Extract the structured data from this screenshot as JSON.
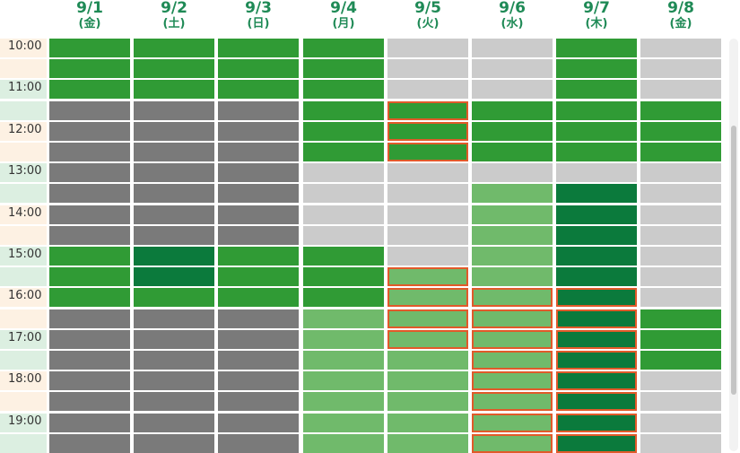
{
  "days": [
    {
      "date": "9/1",
      "weekday": "(金)"
    },
    {
      "date": "9/2",
      "weekday": "(土)"
    },
    {
      "date": "9/3",
      "weekday": "(日)"
    },
    {
      "date": "9/4",
      "weekday": "(月)"
    },
    {
      "date": "9/5",
      "weekday": "(火)"
    },
    {
      "date": "9/6",
      "weekday": "(水)"
    },
    {
      "date": "9/7",
      "weekday": "(木)"
    },
    {
      "date": "9/8",
      "weekday": "(金)"
    }
  ],
  "time_labels": [
    "10:00",
    "11:00",
    "12:00",
    "13:00",
    "14:00",
    "15:00",
    "16:00",
    "17:00",
    "18:00",
    "19:00"
  ],
  "colors": {
    "unavailable_dark": "#7a7a7a",
    "unavailable_light": "#cbcbcb",
    "available": "#309b35",
    "available_light": "#70ba6b",
    "available_dark": "#0b7a3c",
    "selected_border": "#e15a2a",
    "header_text": "#1f8a56"
  },
  "legend_codes": {
    "d": "unavailable_dark",
    "u": "unavailable_light",
    "g": "available",
    "l": "available_light",
    "k": "available_dark",
    "*": "selected"
  },
  "slots": [
    [
      "g",
      "g",
      "g",
      "g",
      "u",
      "u",
      "g",
      "u"
    ],
    [
      "g",
      "g",
      "g",
      "g",
      "u",
      "u",
      "g",
      "u"
    ],
    [
      "g",
      "g",
      "g",
      "g",
      "u",
      "u",
      "g",
      "u"
    ],
    [
      "d",
      "d",
      "d",
      "g",
      "g*",
      "g",
      "g",
      "g"
    ],
    [
      "d",
      "d",
      "d",
      "g",
      "g*",
      "g",
      "g",
      "g"
    ],
    [
      "d",
      "d",
      "d",
      "g",
      "g*",
      "g",
      "g",
      "g"
    ],
    [
      "d",
      "d",
      "d",
      "u",
      "u",
      "u",
      "u",
      "u"
    ],
    [
      "d",
      "d",
      "d",
      "u",
      "u",
      "l",
      "k",
      "u"
    ],
    [
      "d",
      "d",
      "d",
      "u",
      "u",
      "l",
      "k",
      "u"
    ],
    [
      "d",
      "d",
      "d",
      "u",
      "u",
      "l",
      "k",
      "u"
    ],
    [
      "g",
      "k",
      "g",
      "g",
      "u",
      "l",
      "k",
      "u"
    ],
    [
      "g",
      "k",
      "g",
      "g",
      "l*",
      "l",
      "k",
      "u"
    ],
    [
      "g",
      "g",
      "g",
      "g",
      "l*",
      "l*",
      "k*",
      "u"
    ],
    [
      "d",
      "d",
      "d",
      "l",
      "l*",
      "l*",
      "k*",
      "g"
    ],
    [
      "d",
      "d",
      "d",
      "l",
      "l*",
      "l*",
      "k*",
      "g"
    ],
    [
      "d",
      "d",
      "d",
      "l",
      "l",
      "l*",
      "k*",
      "g"
    ],
    [
      "d",
      "d",
      "d",
      "l",
      "l",
      "l*",
      "k*",
      "u"
    ],
    [
      "d",
      "d",
      "d",
      "l",
      "l",
      "l*",
      "k*",
      "u"
    ],
    [
      "d",
      "d",
      "d",
      "l",
      "l",
      "l*",
      "k*",
      "u"
    ],
    [
      "d",
      "d",
      "d",
      "l",
      "l",
      "l*",
      "k*",
      "u"
    ]
  ]
}
